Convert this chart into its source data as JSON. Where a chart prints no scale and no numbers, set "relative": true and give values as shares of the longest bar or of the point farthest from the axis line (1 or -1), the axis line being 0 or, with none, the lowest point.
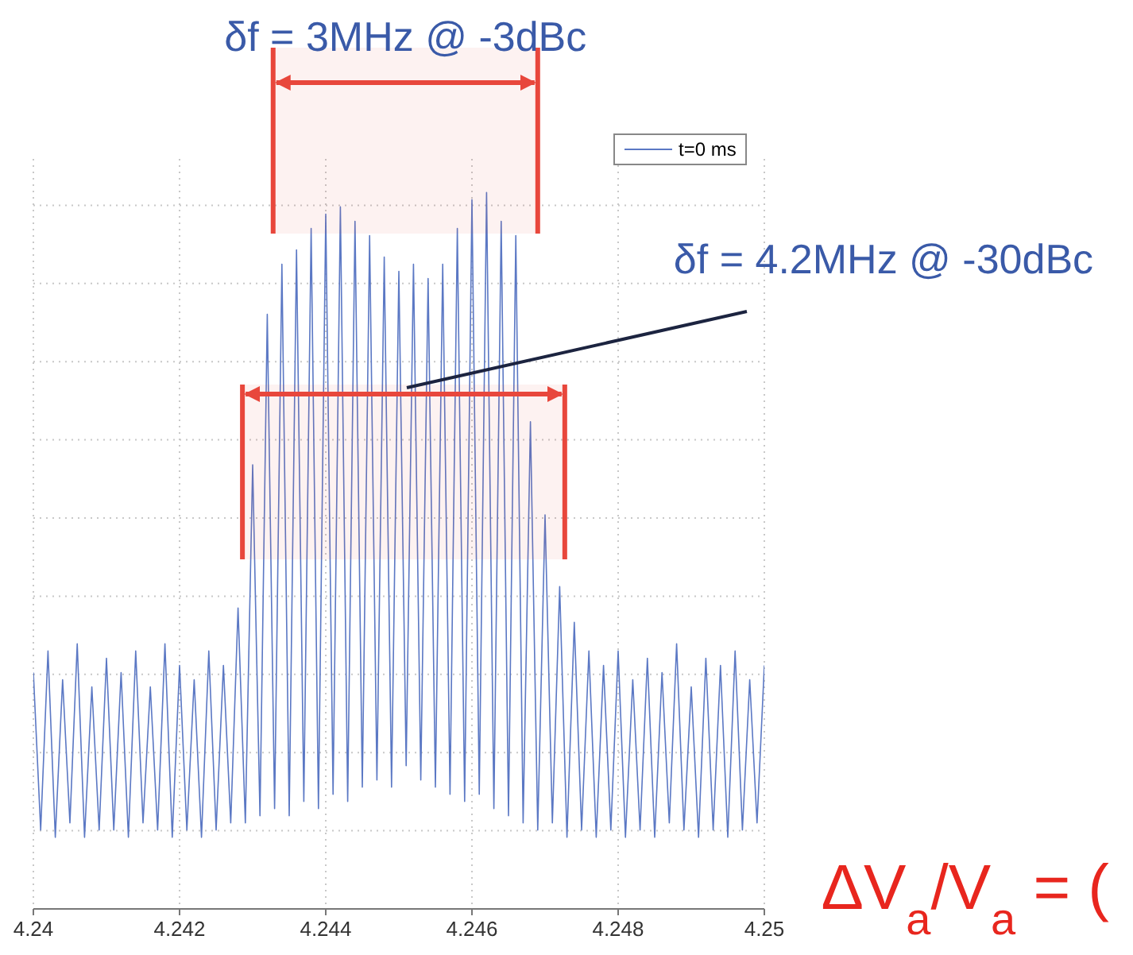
{
  "chart_data": {
    "type": "line",
    "relative": true,
    "x": [
      4.24,
      4.2401,
      4.2402,
      4.2403,
      4.2404,
      4.2405,
      4.2406,
      4.2407,
      4.2408,
      4.2409,
      4.241,
      4.2411,
      4.2412,
      4.2413,
      4.2414,
      4.2415,
      4.2416,
      4.2417,
      4.2418,
      4.2419,
      4.242,
      4.2421,
      4.2422,
      4.2423,
      4.2424,
      4.2425,
      4.2426,
      4.2427,
      4.2428,
      4.2429,
      4.243,
      4.2431,
      4.2432,
      4.2433,
      4.2434,
      4.2435,
      4.2436,
      4.2437,
      4.2438,
      4.2439,
      4.244,
      4.2441,
      4.2442,
      4.2443,
      4.2444,
      4.2445,
      4.2446,
      4.2447,
      4.2448,
      4.2449,
      4.245,
      4.2451,
      4.2452,
      4.2453,
      4.2454,
      4.2455,
      4.2456,
      4.2457,
      4.2458,
      4.2459,
      4.246,
      4.2461,
      4.2462,
      4.2463,
      4.2464,
      4.2465,
      4.2466,
      4.2467,
      4.2468,
      4.2469,
      4.247,
      4.2471,
      4.2472,
      4.2473,
      4.2474,
      4.2475,
      4.2476,
      4.2477,
      4.2478,
      4.2479,
      4.248,
      4.2481,
      4.2482,
      4.2483,
      4.2484,
      4.2485,
      4.2486,
      4.2487,
      4.2488,
      4.2489,
      4.249,
      4.2491,
      4.2492,
      4.2493,
      4.2494,
      4.2495,
      4.2496,
      4.2497,
      4.2498,
      4.2499,
      4.25
    ],
    "series": [
      {
        "name": "t=0 ms",
        "color": "#5b78c4",
        "values": [
          0.33,
          0.11,
          0.36,
          0.1,
          0.32,
          0.12,
          0.37,
          0.1,
          0.31,
          0.11,
          0.35,
          0.11,
          0.33,
          0.1,
          0.36,
          0.12,
          0.31,
          0.11,
          0.37,
          0.1,
          0.34,
          0.11,
          0.32,
          0.1,
          0.36,
          0.11,
          0.34,
          0.12,
          0.42,
          0.12,
          0.62,
          0.13,
          0.83,
          0.14,
          0.9,
          0.13,
          0.92,
          0.15,
          0.95,
          0.14,
          0.97,
          0.16,
          0.98,
          0.15,
          0.96,
          0.17,
          0.94,
          0.18,
          0.91,
          0.17,
          0.89,
          0.2,
          0.9,
          0.18,
          0.88,
          0.17,
          0.9,
          0.16,
          0.95,
          0.15,
          0.99,
          0.16,
          1.0,
          0.14,
          0.96,
          0.13,
          0.94,
          0.12,
          0.68,
          0.11,
          0.55,
          0.12,
          0.45,
          0.1,
          0.4,
          0.11,
          0.36,
          0.1,
          0.34,
          0.11,
          0.36,
          0.1,
          0.32,
          0.11,
          0.35,
          0.1,
          0.33,
          0.12,
          0.37,
          0.11,
          0.31,
          0.1,
          0.35,
          0.11,
          0.34,
          0.1,
          0.36,
          0.11,
          0.32,
          0.12,
          0.34
        ]
      }
    ],
    "xlim": [
      4.24,
      4.25
    ],
    "xticks": [
      4.24,
      4.242,
      4.244,
      4.246,
      4.248,
      4.25
    ],
    "grid": true,
    "legend": "top right",
    "bands": [
      {
        "axis": "x",
        "from": 4.24328,
        "to": 4.2469,
        "label": "δf = 3MHz @ -3dBc",
        "color": "#e8473c"
      },
      {
        "axis": "x",
        "from": 4.24286,
        "to": 4.24727,
        "label": "δf = 4.2MHz @ -30dBc",
        "color": "#e8473c"
      }
    ],
    "annotations": [
      "ΔV$_{a}$/V$_{a}$ = ("
    ]
  }
}
